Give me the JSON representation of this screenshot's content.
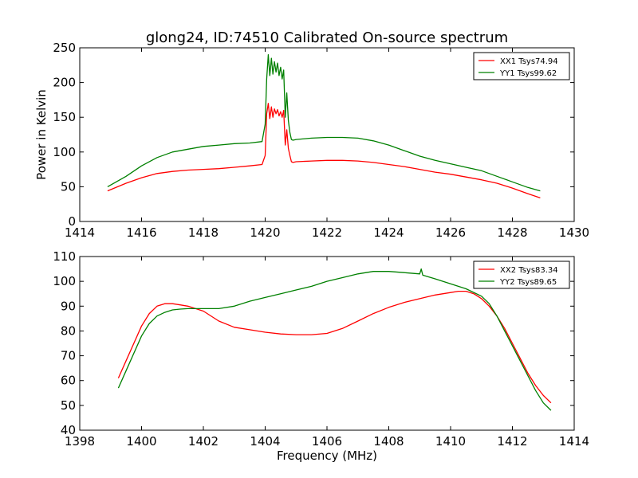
{
  "chart_data": [
    {
      "type": "line",
      "title": "glong24, ID:74510 Calibrated On-source spectrum",
      "xlabel": "",
      "ylabel": "Power in Kelvin",
      "xlim": [
        1414,
        1430
      ],
      "ylim": [
        0,
        250
      ],
      "xticks": [
        "1414",
        "1416",
        "1418",
        "1420",
        "1422",
        "1424",
        "1426",
        "1428",
        "1430"
      ],
      "yticks": [
        "0",
        "50",
        "100",
        "150",
        "200",
        "250"
      ],
      "grid": false,
      "legend_placement": "top-right",
      "series": [
        {
          "name": "XX1 Tsys74.94",
          "color": "#ff0000",
          "x": [
            1414.9,
            1415.5,
            1416.0,
            1416.5,
            1417.0,
            1417.5,
            1418.0,
            1418.5,
            1419.0,
            1419.5,
            1419.9,
            1420.0,
            1420.05,
            1420.1,
            1420.15,
            1420.2,
            1420.25,
            1420.3,
            1420.35,
            1420.4,
            1420.45,
            1420.5,
            1420.55,
            1420.6,
            1420.65,
            1420.7,
            1420.75,
            1420.8,
            1420.85,
            1420.9,
            1421.0,
            1421.5,
            1422.0,
            1422.5,
            1423.0,
            1423.5,
            1424.0,
            1424.5,
            1425.0,
            1425.5,
            1426.0,
            1426.5,
            1427.0,
            1427.5,
            1428.0,
            1428.5,
            1428.9
          ],
          "y": [
            44,
            55,
            63,
            69,
            72,
            74,
            75,
            76,
            78,
            80,
            82,
            95,
            155,
            170,
            148,
            165,
            150,
            162,
            155,
            161,
            152,
            158,
            150,
            160,
            110,
            132,
            105,
            95,
            86,
            85,
            86,
            87,
            88,
            88,
            87,
            85,
            82,
            79,
            75,
            71,
            68,
            64,
            60,
            55,
            48,
            40,
            34
          ]
        },
        {
          "name": "YY1 Tsys99.62",
          "color": "#008000",
          "x": [
            1414.9,
            1415.5,
            1416.0,
            1416.5,
            1417.0,
            1417.5,
            1418.0,
            1418.5,
            1419.0,
            1419.5,
            1419.9,
            1420.0,
            1420.05,
            1420.1,
            1420.15,
            1420.2,
            1420.25,
            1420.3,
            1420.35,
            1420.4,
            1420.45,
            1420.5,
            1420.55,
            1420.6,
            1420.65,
            1420.7,
            1420.75,
            1420.8,
            1420.85,
            1420.9,
            1421.0,
            1421.5,
            1422.0,
            1422.5,
            1423.0,
            1423.5,
            1424.0,
            1424.5,
            1425.0,
            1425.5,
            1426.0,
            1426.5,
            1427.0,
            1427.5,
            1428.0,
            1428.5,
            1428.9
          ],
          "y": [
            50,
            65,
            80,
            92,
            100,
            104,
            108,
            110,
            112,
            113,
            115,
            140,
            205,
            240,
            210,
            235,
            212,
            230,
            215,
            228,
            210,
            222,
            205,
            218,
            150,
            185,
            145,
            128,
            118,
            117,
            118,
            120,
            121,
            121,
            120,
            116,
            110,
            102,
            94,
            88,
            83,
            78,
            73,
            65,
            57,
            49,
            44
          ]
        }
      ]
    },
    {
      "type": "line",
      "title": "",
      "xlabel": "Frequency (MHz)",
      "ylabel": "",
      "xlim": [
        1398,
        1414
      ],
      "ylim": [
        40,
        110
      ],
      "xticks": [
        "1398",
        "1400",
        "1402",
        "1404",
        "1406",
        "1408",
        "1410",
        "1412",
        "1414"
      ],
      "yticks": [
        "40",
        "50",
        "60",
        "70",
        "80",
        "90",
        "100",
        "110"
      ],
      "grid": false,
      "legend_placement": "top-right",
      "series": [
        {
          "name": "XX2 Tsys83.34",
          "color": "#ff0000",
          "x": [
            1399.25,
            1399.5,
            1399.75,
            1400.0,
            1400.25,
            1400.5,
            1400.75,
            1401.0,
            1401.25,
            1401.5,
            1401.75,
            1402.0,
            1402.5,
            1403.0,
            1403.5,
            1404.0,
            1404.5,
            1405.0,
            1405.5,
            1406.0,
            1406.5,
            1407.0,
            1407.5,
            1408.0,
            1408.5,
            1409.0,
            1409.5,
            1410.0,
            1410.25,
            1410.5,
            1410.75,
            1411.0,
            1411.25,
            1411.5,
            1411.75,
            1412.0,
            1412.25,
            1412.5,
            1412.75,
            1413.0,
            1413.25
          ],
          "y": [
            61,
            68,
            75,
            82,
            87,
            90,
            91,
            91,
            90.5,
            90,
            89,
            88,
            84,
            81.5,
            80.5,
            79.5,
            78.8,
            78.5,
            78.5,
            79,
            81,
            84,
            87,
            89.5,
            91.5,
            93,
            94.5,
            95.5,
            96,
            96,
            95,
            93,
            90,
            86,
            81,
            75,
            69,
            63,
            58,
            54,
            51
          ]
        },
        {
          "name": "YY2 Tsys89.65",
          "color": "#008000",
          "x": [
            1399.25,
            1399.5,
            1399.75,
            1400.0,
            1400.25,
            1400.5,
            1400.75,
            1401.0,
            1401.25,
            1401.5,
            1401.75,
            1402.0,
            1402.5,
            1403.0,
            1403.5,
            1404.0,
            1404.5,
            1405.0,
            1405.5,
            1406.0,
            1406.5,
            1407.0,
            1407.5,
            1408.0,
            1408.5,
            1409.0,
            1409.05,
            1409.1,
            1409.5,
            1410.0,
            1410.5,
            1411.0,
            1411.25,
            1411.5,
            1411.75,
            1412.0,
            1412.25,
            1412.5,
            1412.75,
            1413.0,
            1413.25
          ],
          "y": [
            57,
            64,
            71,
            78,
            83,
            86,
            87.5,
            88.5,
            88.8,
            89,
            89,
            89,
            89,
            90,
            92,
            93.5,
            95,
            96.5,
            98,
            100,
            101.5,
            103,
            104,
            104,
            103.5,
            103,
            105,
            102.5,
            101,
            99,
            97,
            94,
            91,
            86,
            80,
            74,
            68,
            62,
            56,
            51,
            48
          ]
        }
      ]
    }
  ]
}
